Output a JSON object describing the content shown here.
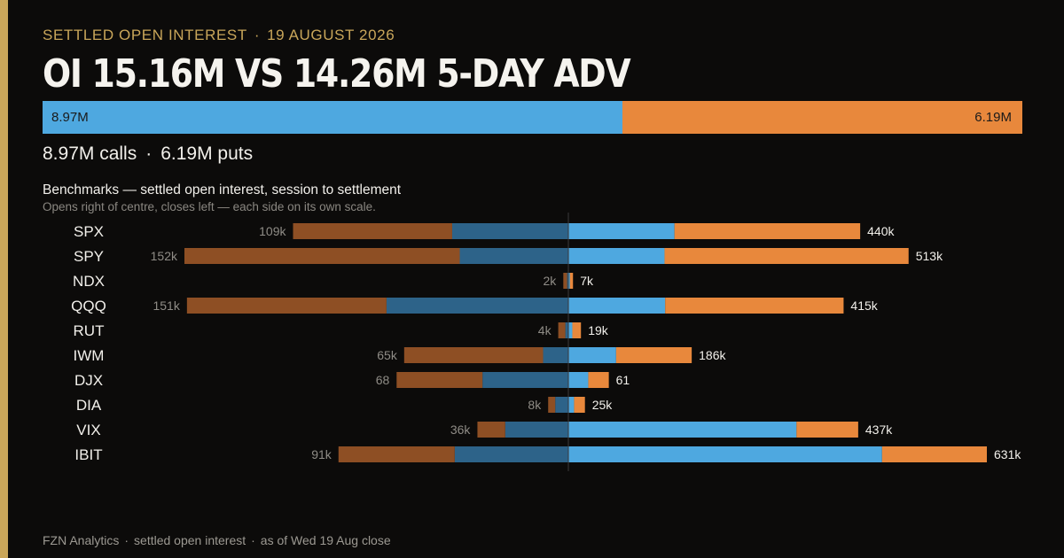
{
  "header": {
    "eyebrow_label": "SETTLED OPEN INTEREST",
    "eyebrow_separator": "·",
    "eyebrow_date": "19 AUGUST 2026",
    "headline": "OI 15.16M VS 14.26M 5-DAY ADV"
  },
  "split": {
    "calls_label": "8.97M",
    "puts_label": "6.19M",
    "calls_value_m": 8.97,
    "puts_value_m": 6.19,
    "caption_calls": "8.97M calls",
    "caption_separator": "·",
    "caption_puts": "6.19M puts"
  },
  "subchart": {
    "title": "Benchmarks — settled open interest, session to settlement",
    "note": "Opens right of centre, closes left — each side on its own scale."
  },
  "footer": {
    "source": "FZN Analytics",
    "sep1": "·",
    "metric": "settled open interest",
    "sep2": "·",
    "asof": "as of Wed 19 Aug close"
  },
  "colors": {
    "background": "#0c0b0a",
    "accent": "#c9a65a",
    "calls": "#4ea8e0",
    "puts": "#e8883c",
    "calls_dark": "#2d6389",
    "puts_dark": "#8e4f24"
  },
  "chart_data": {
    "type": "bar",
    "orientation": "horizontal-diverging",
    "categories": [
      "SPX",
      "SPY",
      "NDX",
      "QQQ",
      "RUT",
      "IWM",
      "DJX",
      "DIA",
      "VIX",
      "IBIT"
    ],
    "left_labels": [
      "109k",
      "152k",
      "2k",
      "151k",
      "4k",
      "65k",
      "68",
      "8k",
      "36k",
      "91k"
    ],
    "right_labels": [
      "440k",
      "513k",
      "7k",
      "415k",
      "19k",
      "186k",
      "61",
      "25k",
      "437k",
      "631k"
    ],
    "series": [
      {
        "name": "calls",
        "side": "right",
        "values": [
          160,
          145,
          2.4,
          146,
          6,
          72,
          30,
          8.6,
          344,
          473
        ]
      },
      {
        "name": "puts",
        "side": "right",
        "values": [
          280,
          368,
          4.6,
          269,
          13,
          114,
          31,
          16.4,
          93,
          158
        ]
      },
      {
        "name": "calls",
        "side": "left",
        "values": [
          46,
          43,
          0.5,
          72,
          1.2,
          10,
          34,
          5.2,
          25,
          45
        ]
      },
      {
        "name": "puts",
        "side": "left",
        "values": [
          63,
          109,
          1.5,
          79,
          2.8,
          55,
          34,
          2.8,
          11,
          46
        ]
      }
    ],
    "left_scale_max": 152,
    "right_scale_max": 631,
    "grid": false
  }
}
